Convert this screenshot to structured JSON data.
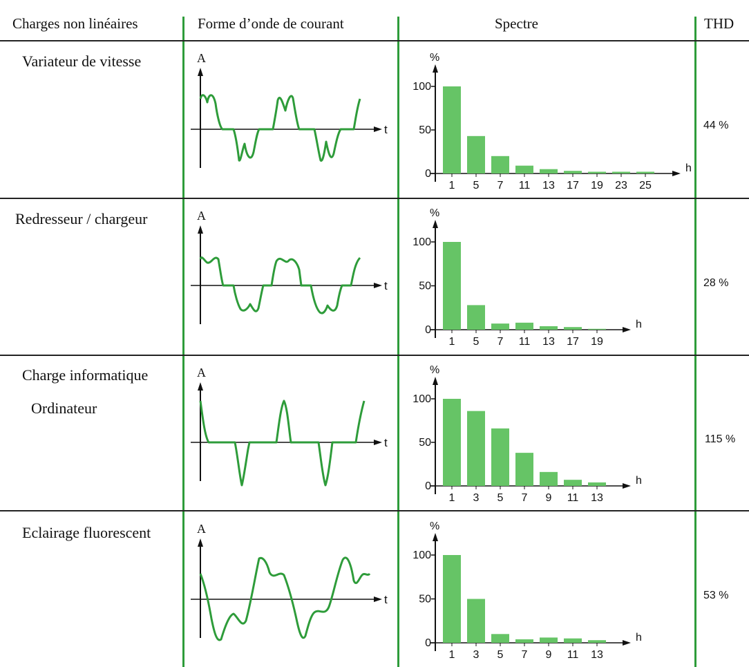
{
  "headers": {
    "loads": "Charges non linéaires",
    "waveform": "Forme d’onde de courant",
    "spectrum": "Spectre",
    "thd": "THD"
  },
  "rows": [
    {
      "label": "Variateur de vitesse",
      "sublabel": "",
      "thd": "44 %"
    },
    {
      "label": "Redresseur / chargeur",
      "sublabel": "",
      "thd": "28 %"
    },
    {
      "label": "Charge informatique",
      "sublabel": "Ordinateur",
      "thd": "115 %"
    },
    {
      "label": "Eclairage fluorescent",
      "sublabel": "",
      "thd": "53 %"
    }
  ],
  "waveform_axes": {
    "ylabel": "A",
    "xlabel": "t"
  },
  "colors": {
    "accent": "#2e9c3a",
    "bars": "#66c466",
    "rule": "#222222"
  },
  "chart_data": [
    {
      "type": "bar",
      "ylabel": "%",
      "xlabel": "h",
      "yticks": [
        "0",
        "50",
        "100"
      ],
      "ylim": [
        0,
        100
      ],
      "categories": [
        "1",
        "5",
        "7",
        "11",
        "13",
        "17",
        "19",
        "23",
        "25"
      ],
      "values": [
        100,
        43,
        20,
        9,
        5,
        3,
        2,
        2,
        2
      ]
    },
    {
      "type": "bar",
      "ylabel": "%",
      "xlabel": "h",
      "yticks": [
        "0",
        "50",
        "100"
      ],
      "ylim": [
        0,
        100
      ],
      "categories": [
        "1",
        "5",
        "7",
        "11",
        "13",
        "17",
        "19"
      ],
      "values": [
        100,
        28,
        7,
        8,
        4,
        3,
        1
      ]
    },
    {
      "type": "bar",
      "ylabel": "%",
      "xlabel": "h",
      "yticks": [
        "0",
        "50",
        "100"
      ],
      "ylim": [
        0,
        100
      ],
      "categories": [
        "1",
        "3",
        "5",
        "7",
        "9",
        "11",
        "13"
      ],
      "values": [
        100,
        86,
        66,
        38,
        16,
        7,
        4
      ]
    },
    {
      "type": "bar",
      "ylabel": "%",
      "xlabel": "h",
      "yticks": [
        "0",
        "50",
        "100"
      ],
      "ylim": [
        0,
        100
      ],
      "categories": [
        "1",
        "3",
        "5",
        "7",
        "9",
        "11",
        "13"
      ],
      "values": [
        100,
        50,
        10,
        4,
        6,
        5,
        3
      ]
    }
  ]
}
